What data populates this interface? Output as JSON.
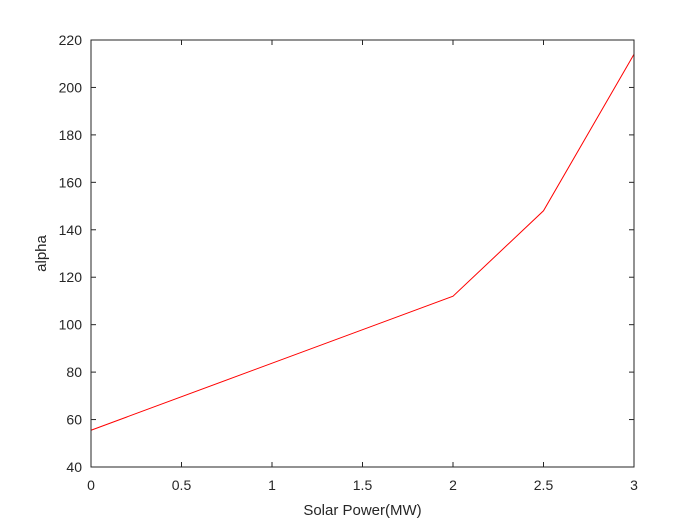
{
  "chart_data": {
    "type": "line",
    "xlabel": "Solar Power(MW)",
    "ylabel": "alpha",
    "xlim": [
      0,
      3
    ],
    "ylim": [
      40,
      220
    ],
    "xticks": [
      0,
      0.5,
      1,
      1.5,
      2,
      2.5,
      3
    ],
    "yticks": [
      40,
      60,
      80,
      100,
      120,
      140,
      160,
      180,
      200,
      220
    ],
    "xtick_labels": [
      "0",
      "0.5",
      "1",
      "1.5",
      "2",
      "2.5",
      "3"
    ],
    "ytick_labels": [
      "40",
      "60",
      "80",
      "100",
      "120",
      "140",
      "160",
      "180",
      "200",
      "220"
    ],
    "grid": false,
    "box": true,
    "series": [
      {
        "color": "#ff0000",
        "x": [
          0,
          2,
          2.5,
          3
        ],
        "y": [
          55.5,
          112,
          148,
          214
        ]
      }
    ]
  }
}
